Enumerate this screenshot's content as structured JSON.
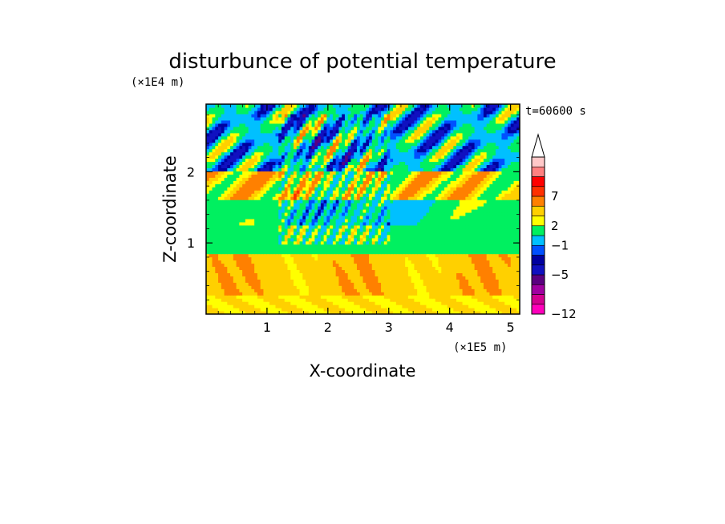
{
  "chart_data": {
    "type": "heatmap",
    "title": "disturbunce of potential temperature",
    "xlabel": "X-coordinate",
    "ylabel": "Z-coordinate",
    "x_unit": "(×1E5 m)",
    "y_unit": "(×1E4 m)",
    "time_label": "t=60600 s",
    "xlim": [
      0,
      5.15
    ],
    "ylim": [
      0,
      2.95
    ],
    "x_ticks": [
      1,
      2,
      3,
      4,
      5
    ],
    "x_tick_labels": [
      "1",
      "2",
      "3",
      "4",
      "5"
    ],
    "y_ticks": [
      1,
      2
    ],
    "y_tick_labels": [
      "1",
      "2"
    ],
    "colorbar": {
      "levels": [
        -12,
        -11,
        -9,
        -7,
        -5,
        -4,
        -3,
        -1,
        1,
        2,
        3,
        5,
        7,
        8,
        9
      ],
      "colors": [
        "#ff00bb",
        "#d40090",
        "#a000a0",
        "#5a0080",
        "#1010c0",
        "#0000a0",
        "#0050ff",
        "#00c0ff",
        "#00f060",
        "#ffff00",
        "#ffd000",
        "#ff8000",
        "#ff3000",
        "#ff0000",
        "#ff8080",
        "#ffc8c8"
      ],
      "extend_max": true,
      "tick_values": [
        -12,
        -5,
        -1,
        2,
        7
      ],
      "tick_labels": [
        "-12",
        "-5",
        "-1",
        "2",
        "7"
      ]
    },
    "field": {
      "description_levels": "bottom warm layer (yellow/orange), mid neutral layer (green/cyan), upper wave layer (blue/orange alternating)",
      "bands": [
        {
          "z": [
            0.0,
            0.25
          ],
          "value": 2
        },
        {
          "z": [
            0.25,
            0.85
          ],
          "value": 3
        },
        {
          "z": [
            0.85,
            1.25
          ],
          "value": 0
        },
        {
          "z": [
            1.25,
            1.6
          ],
          "value": -1
        },
        {
          "z": [
            1.6,
            2.0
          ],
          "value": 2
        },
        {
          "z": [
            2.0,
            2.95
          ],
          "value": -3
        }
      ]
    }
  }
}
